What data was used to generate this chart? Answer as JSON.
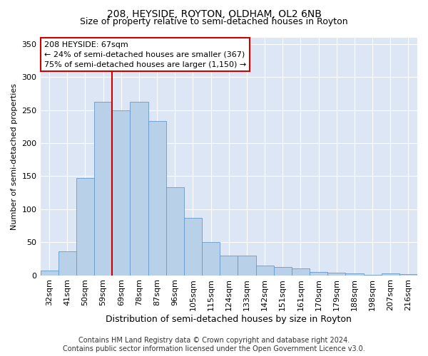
{
  "title1": "208, HEYSIDE, ROYTON, OLDHAM, OL2 6NB",
  "title2": "Size of property relative to semi-detached houses in Royton",
  "xlabel": "Distribution of semi-detached houses by size in Royton",
  "ylabel": "Number of semi-detached properties",
  "footer1": "Contains HM Land Registry data © Crown copyright and database right 2024.",
  "footer2": "Contains public sector information licensed under the Open Government Licence v3.0.",
  "annotation_title": "208 HEYSIDE: 67sqm",
  "annotation_line1": "← 24% of semi-detached houses are smaller (367)",
  "annotation_line2": "75% of semi-detached houses are larger (1,150) →",
  "categories": [
    "32sqm",
    "41sqm",
    "50sqm",
    "59sqm",
    "69sqm",
    "78sqm",
    "87sqm",
    "96sqm",
    "105sqm",
    "115sqm",
    "124sqm",
    "133sqm",
    "142sqm",
    "151sqm",
    "161sqm",
    "170sqm",
    "179sqm",
    "188sqm",
    "198sqm",
    "207sqm",
    "216sqm"
  ],
  "values": [
    7,
    36,
    147,
    262,
    250,
    263,
    233,
    133,
    87,
    50,
    30,
    30,
    15,
    12,
    10,
    5,
    4,
    3,
    1,
    3,
    2
  ],
  "bar_color": "#b8d0e8",
  "bar_edge_color": "#6699cc",
  "vline_color": "#cc0000",
  "vline_index": 3.5,
  "ylim": [
    0,
    360
  ],
  "yticks": [
    0,
    50,
    100,
    150,
    200,
    250,
    300,
    350
  ],
  "bg_color": "#dce6f5",
  "title1_fontsize": 10,
  "title2_fontsize": 9,
  "xlabel_fontsize": 9,
  "ylabel_fontsize": 8,
  "tick_fontsize": 8,
  "footer_fontsize": 7,
  "annotation_fontsize": 8
}
